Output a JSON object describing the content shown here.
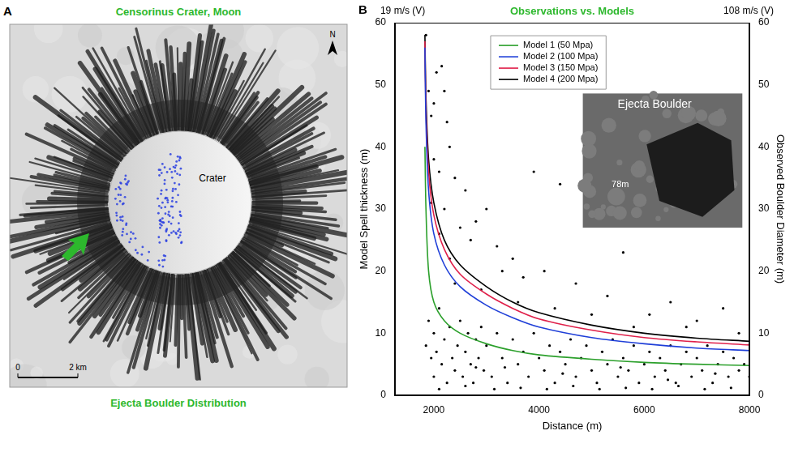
{
  "map": {
    "letter": "A",
    "title": "Censorinus Crater, Moon",
    "caption": "Ejecta Boulder Distribution",
    "crater_label": "Crater",
    "north_label": "N",
    "scale_bar": {
      "start": "0",
      "end": "2 km"
    }
  },
  "chart_data": {
    "type": "scatter",
    "panel_letter": "B",
    "title": "Observations vs. Models",
    "top_left_label": "19 m/s (V)",
    "top_right_label": "108 m/s (V)",
    "x_label": "Distance (m)",
    "y_label": "Model Spell thickness (m)",
    "y2_label": "Observed Boulder Diameter (m)",
    "xlim": [
      1260,
      8000
    ],
    "xticks": [
      2000,
      4000,
      6000,
      8000
    ],
    "ylim": [
      0,
      60
    ],
    "yticks": [
      0,
      10,
      20,
      30,
      40,
      50,
      60
    ],
    "y2lim": [
      0,
      60
    ],
    "y2ticks": [
      0,
      10,
      20,
      30,
      40,
      50,
      60
    ],
    "grid": false,
    "legend": "top",
    "x": [
      1830,
      1850,
      1900,
      2000,
      2200,
      2500,
      3000,
      3500,
      4000,
      5000,
      6000,
      7000,
      8000
    ],
    "series": [
      {
        "name": "Model 1 (50 Mpa)",
        "color": "#2ca02c",
        "type": "line",
        "line_style": "solid",
        "marker": "none",
        "values": [
          40,
          30,
          20,
          15,
          12,
          10,
          8.3,
          7.2,
          6.5,
          5.8,
          5.3,
          5.0,
          4.8
        ]
      },
      {
        "name": "Model 2 (100 Mpa)",
        "color": "#1f3fd8",
        "type": "line",
        "line_style": "solid",
        "marker": "none",
        "values": [
          56,
          44,
          33,
          26,
          21,
          17.5,
          14.5,
          12.5,
          11,
          9.3,
          8.3,
          7.6,
          7.2
        ]
      },
      {
        "name": "Model 3 (150 Mpa)",
        "color": "#e0204a",
        "type": "line",
        "line_style": "solid",
        "marker": "none",
        "values": [
          57,
          46,
          36,
          29,
          23.5,
          19.5,
          16.3,
          14,
          12.3,
          10.5,
          9.3,
          8.6,
          8.1
        ]
      },
      {
        "name": "Model 4 (200 Mpa)",
        "color": "#000000",
        "type": "line",
        "line_style": "solid",
        "marker": "none",
        "values": [
          58,
          48,
          38,
          31,
          25,
          21,
          17.5,
          15,
          13.3,
          11.3,
          10,
          9.2,
          8.7
        ]
      },
      {
        "type": "scatter",
        "color": "#000000",
        "marker": "circle",
        "axis": "y2",
        "x": [
          1850,
          1900,
          1950,
          2000,
          2050,
          2150,
          2200,
          2250,
          2000,
          2100,
          2300,
          2400,
          2200,
          2600,
          2800,
          3000,
          2700,
          2500,
          3200,
          3500,
          3900,
          4400,
          4100,
          3700,
          3300,
          4700,
          5300,
          5600,
          6100,
          6500,
          7000,
          7500,
          2300,
          2100,
          1950,
          2400,
          2900,
          3600,
          4300,
          5000,
          5800,
          6800,
          7800,
          1850,
          1900,
          1950,
          2000,
          2000,
          2050,
          2100,
          2150,
          2200,
          2250,
          2300,
          2350,
          2400,
          2450,
          2500,
          2550,
          2600,
          2650,
          2700,
          2750,
          2800,
          2850,
          2900,
          2950,
          3000,
          3100,
          3200,
          3300,
          3400,
          3500,
          3600,
          3700,
          3800,
          3900,
          4000,
          4100,
          4200,
          4300,
          4400,
          4500,
          4600,
          4700,
          4800,
          4900,
          5000,
          5100,
          5200,
          5300,
          5400,
          5500,
          5600,
          5700,
          5800,
          5900,
          6000,
          6100,
          6200,
          6300,
          6400,
          6500,
          6600,
          6700,
          6800,
          6900,
          7000,
          7100,
          7200,
          7300,
          7400,
          7500,
          7600,
          7700,
          7800,
          7900,
          8000,
          2100,
          2600,
          3150,
          3650,
          4150,
          4650,
          5150,
          5650,
          6150,
          6650,
          7150,
          7650,
          2800,
          3350,
          4450,
          5550,
          6450,
          7350
        ],
        "values": [
          58,
          49,
          45,
          47,
          52,
          53,
          49,
          44,
          38,
          36,
          40,
          35,
          30,
          33,
          28,
          30,
          25,
          27,
          24,
          22,
          36,
          34,
          20,
          19,
          20,
          18,
          16,
          23,
          13,
          15,
          12,
          14,
          22,
          26,
          31,
          18,
          17,
          15,
          14,
          13,
          11,
          11,
          10,
          8,
          12,
          6,
          10,
          3,
          7,
          14,
          5,
          9,
          2,
          11,
          6,
          4,
          8,
          12,
          3,
          7,
          10,
          5,
          2,
          9,
          6,
          11,
          4,
          8,
          3,
          10,
          6,
          2,
          9,
          5,
          7,
          3,
          10,
          6,
          4,
          8,
          2,
          7,
          5,
          9,
          3,
          6,
          8,
          4,
          2,
          7,
          5,
          9,
          3,
          6,
          4,
          8,
          2,
          5,
          7,
          3,
          6,
          4,
          8,
          2,
          5,
          7,
          3,
          6,
          4,
          8,
          2,
          5,
          7,
          3,
          6,
          4,
          5,
          3,
          1,
          1.5,
          1,
          1.2,
          1,
          1.5,
          1,
          1.2,
          1,
          1.5,
          1,
          1.2,
          4.5,
          4.5,
          3.5,
          4.5,
          2.5,
          3.5
        ]
      }
    ],
    "inset": {
      "title": "Ejecta Boulder",
      "label": "78m"
    }
  }
}
